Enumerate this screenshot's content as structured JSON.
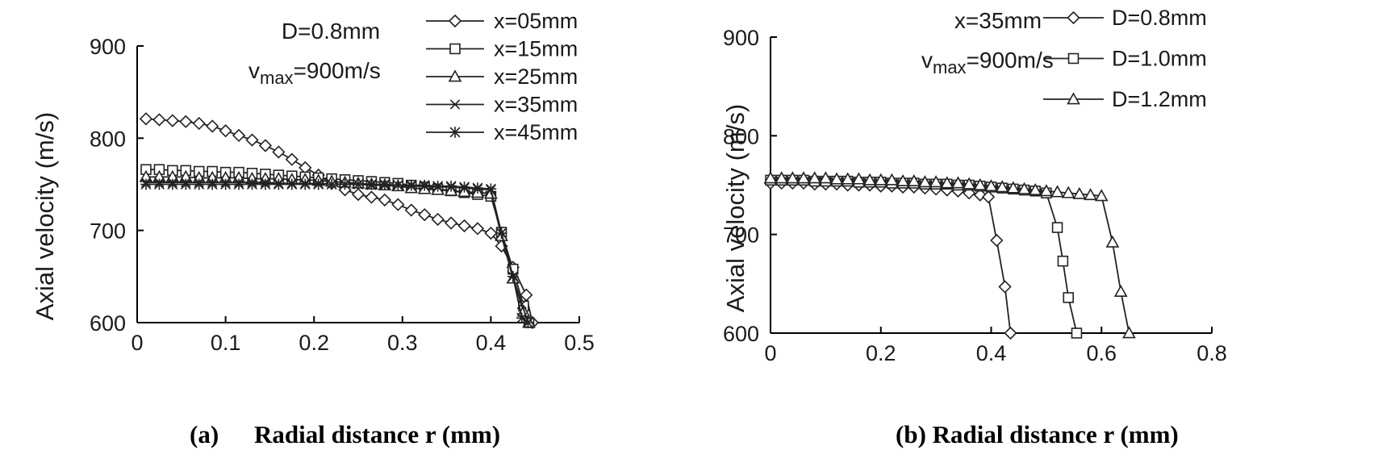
{
  "chart_data": [
    {
      "type": "line",
      "caption_label": "(a)",
      "caption": "Radial distance r (mm)",
      "ylabel": "Axial velocity (m/s)",
      "xlabel": "",
      "xlim": [
        0,
        0.5
      ],
      "ylim": [
        600,
        900
      ],
      "xticks": [
        "0",
        "0.1",
        "0.2",
        "0.3",
        "0.4",
        "0.5"
      ],
      "yticks": [
        "600",
        "700",
        "800",
        "900"
      ],
      "annotation_line1": "D=0.8mm",
      "annotation_line2_prefix": "v",
      "annotation_line2_sub": "max",
      "annotation_line2_suffix": "=900m/s",
      "series": [
        {
          "name": "x=05mm",
          "marker": "diamond",
          "x": [
            0.01,
            0.025,
            0.04,
            0.055,
            0.07,
            0.085,
            0.1,
            0.115,
            0.13,
            0.145,
            0.16,
            0.175,
            0.19,
            0.205,
            0.22,
            0.235,
            0.25,
            0.265,
            0.28,
            0.295,
            0.31,
            0.325,
            0.34,
            0.355,
            0.37,
            0.385,
            0.4,
            0.412,
            0.425,
            0.44,
            0.447
          ],
          "y": [
            821,
            820,
            819,
            818,
            816,
            813,
            808,
            803,
            798,
            792,
            785,
            777,
            768,
            760,
            751,
            744,
            739,
            736,
            733,
            728,
            722,
            717,
            712,
            708,
            705,
            702,
            697,
            683,
            660,
            630,
            600
          ]
        },
        {
          "name": "x=15mm",
          "marker": "square",
          "x": [
            0.01,
            0.025,
            0.04,
            0.055,
            0.07,
            0.085,
            0.1,
            0.115,
            0.13,
            0.145,
            0.16,
            0.175,
            0.19,
            0.205,
            0.22,
            0.235,
            0.25,
            0.265,
            0.28,
            0.295,
            0.31,
            0.325,
            0.34,
            0.355,
            0.37,
            0.385,
            0.4,
            0.412,
            0.425,
            0.437,
            0.443
          ],
          "y": [
            766,
            766,
            765,
            765,
            764,
            764,
            763,
            763,
            762,
            761,
            760,
            759,
            758,
            757,
            756,
            755,
            754,
            753,
            752,
            751,
            749,
            747,
            745,
            743,
            741,
            739,
            737,
            698,
            658,
            618,
            600
          ]
        },
        {
          "name": "x=25mm",
          "marker": "triangle",
          "x": [
            0.01,
            0.025,
            0.04,
            0.055,
            0.07,
            0.085,
            0.1,
            0.115,
            0.13,
            0.145,
            0.16,
            0.175,
            0.19,
            0.205,
            0.22,
            0.235,
            0.25,
            0.265,
            0.28,
            0.295,
            0.31,
            0.325,
            0.34,
            0.355,
            0.37,
            0.385,
            0.4,
            0.412,
            0.425,
            0.437,
            0.443
          ],
          "y": [
            758,
            758,
            758,
            758,
            757,
            757,
            757,
            757,
            756,
            756,
            756,
            755,
            755,
            754,
            753,
            752,
            751,
            750,
            749,
            748,
            746,
            745,
            744,
            743,
            742,
            741,
            740,
            694,
            648,
            612,
            600
          ]
        },
        {
          "name": "x=35mm",
          "marker": "x",
          "x": [
            0.01,
            0.025,
            0.04,
            0.055,
            0.07,
            0.085,
            0.1,
            0.115,
            0.13,
            0.145,
            0.16,
            0.175,
            0.19,
            0.205,
            0.22,
            0.235,
            0.25,
            0.265,
            0.28,
            0.295,
            0.31,
            0.325,
            0.34,
            0.355,
            0.37,
            0.385,
            0.4,
            0.412,
            0.425,
            0.435,
            0.442
          ],
          "y": [
            752,
            752,
            752,
            752,
            752,
            752,
            752,
            752,
            752,
            752,
            751,
            751,
            751,
            751,
            750,
            750,
            750,
            749,
            749,
            749,
            748,
            748,
            747,
            747,
            746,
            745,
            744,
            697,
            650,
            620,
            600
          ]
        },
        {
          "name": "x=45mm",
          "marker": "asterisk",
          "x": [
            0.01,
            0.025,
            0.04,
            0.055,
            0.07,
            0.085,
            0.1,
            0.115,
            0.13,
            0.145,
            0.16,
            0.175,
            0.19,
            0.205,
            0.22,
            0.235,
            0.25,
            0.265,
            0.28,
            0.295,
            0.31,
            0.325,
            0.34,
            0.355,
            0.37,
            0.385,
            0.4,
            0.412,
            0.425,
            0.435,
            0.442
          ],
          "y": [
            750,
            750,
            750,
            750,
            750,
            750,
            750,
            750,
            750,
            750,
            750,
            750,
            750,
            750,
            750,
            750,
            750,
            750,
            750,
            749,
            749,
            749,
            748,
            748,
            747,
            746,
            745,
            697,
            650,
            605,
            600
          ]
        }
      ]
    },
    {
      "type": "line",
      "caption_label": "",
      "caption": "(b) Radial distance r (mm)",
      "ylabel": "Axial velocity (m/s)",
      "xlabel": "",
      "xlim": [
        0,
        0.8
      ],
      "ylim": [
        600,
        900
      ],
      "xticks": [
        "0",
        "0.2",
        "0.4",
        "0.6",
        "0.8"
      ],
      "yticks": [
        "600",
        "700",
        "800",
        "900"
      ],
      "annotation_line1": "x=35mm",
      "annotation_line2_prefix": "v",
      "annotation_line2_sub": "max",
      "annotation_line2_suffix": "=900m/s",
      "series": [
        {
          "name": "D=0.8mm",
          "marker": "diamond",
          "x": [
            0,
            0.02,
            0.04,
            0.06,
            0.08,
            0.1,
            0.12,
            0.14,
            0.16,
            0.18,
            0.2,
            0.22,
            0.24,
            0.26,
            0.28,
            0.3,
            0.32,
            0.34,
            0.36,
            0.38,
            0.395,
            0.41,
            0.425,
            0.435
          ],
          "y": [
            752,
            752,
            752,
            752,
            751,
            751,
            751,
            750,
            750,
            750,
            749,
            749,
            748,
            748,
            747,
            746,
            745,
            744,
            742,
            740,
            738,
            694,
            647,
            600
          ]
        },
        {
          "name": "D=1.0mm",
          "marker": "square",
          "x": [
            0,
            0.02,
            0.04,
            0.06,
            0.08,
            0.1,
            0.12,
            0.14,
            0.16,
            0.18,
            0.2,
            0.22,
            0.24,
            0.26,
            0.28,
            0.3,
            0.32,
            0.34,
            0.36,
            0.38,
            0.4,
            0.42,
            0.44,
            0.46,
            0.48,
            0.5,
            0.52,
            0.53,
            0.54,
            0.555
          ],
          "y": [
            755,
            755,
            755,
            755,
            754,
            754,
            754,
            754,
            753,
            753,
            753,
            752,
            752,
            752,
            751,
            751,
            751,
            750,
            750,
            749,
            748,
            747,
            746,
            745,
            744,
            742,
            707,
            673,
            636,
            600
          ]
        },
        {
          "name": "D=1.2mm",
          "marker": "triangle",
          "x": [
            0,
            0.02,
            0.04,
            0.06,
            0.08,
            0.1,
            0.12,
            0.14,
            0.16,
            0.18,
            0.2,
            0.22,
            0.24,
            0.26,
            0.28,
            0.3,
            0.32,
            0.34,
            0.36,
            0.38,
            0.4,
            0.42,
            0.44,
            0.46,
            0.48,
            0.5,
            0.52,
            0.54,
            0.56,
            0.58,
            0.6,
            0.62,
            0.635,
            0.65
          ],
          "y": [
            757,
            757,
            757,
            757,
            757,
            757,
            756,
            756,
            756,
            755,
            755,
            755,
            754,
            754,
            753,
            753,
            752,
            752,
            751,
            750,
            749,
            748,
            747,
            746,
            745,
            744,
            743,
            742,
            741,
            740,
            739,
            692,
            642,
            600
          ]
        }
      ]
    }
  ]
}
